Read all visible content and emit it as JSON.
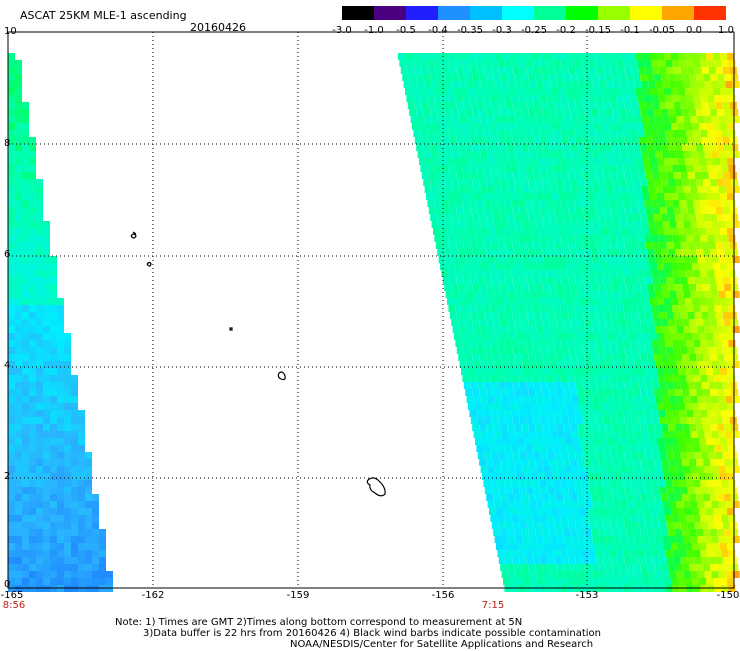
{
  "header": {
    "title": "ASCAT 25KM MLE-1 ascending",
    "date": "20160426"
  },
  "colorbar": {
    "labels": [
      "-3.0",
      "-1.0",
      "-0.5",
      "-0.4",
      "-0.35",
      "-0.3",
      "-0.25",
      "-0.2",
      "-0.15",
      "-0.1",
      "-0.05",
      "0.0",
      "1.0"
    ],
    "colors": [
      "#000000",
      "#4b0082",
      "#2020ff",
      "#1e90ff",
      "#00bfff",
      "#00ffff",
      "#00ff99",
      "#00ff00",
      "#99ff00",
      "#ffff00",
      "#ffa500",
      "#ff3300"
    ]
  },
  "axes": {
    "y_ticks": [
      "10",
      "8",
      "6",
      "4",
      "2",
      "0"
    ],
    "x_ticks": [
      "-165",
      "-162",
      "-159",
      "-156",
      "-153",
      "-150"
    ]
  },
  "swath_times": {
    "left": "8:56",
    "right": "7:15"
  },
  "notes": {
    "line1": "Note: 1) Times are GMT 2)Times along bottom correspond to measurement at 5N",
    "line2": "3)Data buffer is 22 hrs from 20160426 4) Black wind barbs indicate possible contamination",
    "line3": "NOAA/NESDIS/Center for Satellite Applications and Research"
  }
}
